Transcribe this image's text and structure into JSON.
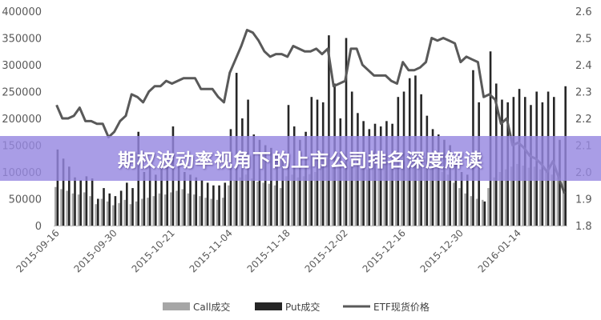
{
  "banner": {
    "text": "期权波动率视角下的上市公司排名深度解读"
  },
  "chart_data": {
    "type": "bar+line",
    "title": "",
    "categories": [
      "2015-09-16",
      "2015-09-17",
      "2015-09-18",
      "2015-09-21",
      "2015-09-22",
      "2015-09-23",
      "2015-09-24",
      "2015-09-25",
      "2015-09-28",
      "2015-09-29",
      "2015-09-30",
      "2015-10-08",
      "2015-10-09",
      "2015-10-12",
      "2015-10-13",
      "2015-10-14",
      "2015-10-15",
      "2015-10-16",
      "2015-10-19",
      "2015-10-20",
      "2015-10-21",
      "2015-10-22",
      "2015-10-23",
      "2015-10-26",
      "2015-10-27",
      "2015-10-28",
      "2015-10-29",
      "2015-10-30",
      "2015-11-02",
      "2015-11-03",
      "2015-11-04",
      "2015-11-05",
      "2015-11-06",
      "2015-11-09",
      "2015-11-10",
      "2015-11-11",
      "2015-11-12",
      "2015-11-13",
      "2015-11-16",
      "2015-11-17",
      "2015-11-18",
      "2015-11-19",
      "2015-11-20",
      "2015-11-23",
      "2015-11-24",
      "2015-11-25",
      "2015-11-26",
      "2015-11-27",
      "2015-11-30",
      "2015-12-01",
      "2015-12-02",
      "2015-12-03",
      "2015-12-04",
      "2015-12-07",
      "2015-12-08",
      "2015-12-09",
      "2015-12-10",
      "2015-12-11",
      "2015-12-14",
      "2015-12-15",
      "2015-12-16",
      "2015-12-17",
      "2015-12-18",
      "2015-12-21",
      "2015-12-22",
      "2015-12-23",
      "2015-12-24",
      "2015-12-25",
      "2015-12-28",
      "2015-12-29",
      "2015-12-30",
      "2015-12-31",
      "2016-01-04",
      "2016-01-05",
      "2016-01-06",
      "2016-01-07",
      "2016-01-08",
      "2016-01-11",
      "2016-01-12",
      "2016-01-13",
      "2016-01-14",
      "2016-01-15",
      "2016-01-18",
      "2016-01-19",
      "2016-01-20",
      "2016-01-21",
      "2016-01-22",
      "2016-01-25",
      "2016-01-26"
    ],
    "x_tick_labels": [
      "2015-09-16",
      "2015-09-30",
      "2015-10-21",
      "2015-11-04",
      "2015-11-18",
      "2015-12-02",
      "2015-12-16",
      "2015-12-30",
      "2016-01-14"
    ],
    "series": [
      {
        "name": "Call成交",
        "type": "bar",
        "axis": "left",
        "color": "#a6a6a6",
        "values": [
          72000,
          68000,
          65000,
          60000,
          58000,
          62000,
          55000,
          40000,
          50000,
          45000,
          38000,
          42000,
          48000,
          40000,
          45000,
          50000,
          52000,
          55000,
          60000,
          58000,
          62000,
          65000,
          68000,
          60000,
          58000,
          55000,
          52000,
          50000,
          48000,
          52000,
          75000,
          85000,
          90000,
          95000,
          88000,
          82000,
          80000,
          78000,
          75000,
          70000,
          92000,
          95000,
          90000,
          92000,
          96000,
          100000,
          110000,
          112000,
          115000,
          110000,
          118000,
          120000,
          115000,
          110000,
          105000,
          108000,
          112000,
          115000,
          120000,
          118000,
          125000,
          130000,
          132000,
          128000,
          126000,
          118000,
          110000,
          100000,
          95000,
          80000,
          70000,
          60000,
          55000,
          50000,
          48000,
          70000,
          90000,
          100000,
          105000,
          110000,
          115000,
          112000,
          108000,
          110000,
          105000,
          100000,
          95000,
          90000,
          85000
        ]
      },
      {
        "name": "Put成交",
        "type": "bar",
        "axis": "left",
        "color": "#262626",
        "values": [
          142000,
          125000,
          110000,
          90000,
          85000,
          92000,
          88000,
          50000,
          70000,
          60000,
          55000,
          65000,
          80000,
          70000,
          175000,
          100000,
          110000,
          95000,
          120000,
          115000,
          185000,
          110000,
          100000,
          95000,
          90000,
          85000,
          80000,
          75000,
          75000,
          80000,
          180000,
          285000,
          200000,
          235000,
          170000,
          160000,
          150000,
          145000,
          140000,
          125000,
          225000,
          185000,
          160000,
          175000,
          240000,
          235000,
          230000,
          355000,
          265000,
          200000,
          350000,
          250000,
          210000,
          195000,
          180000,
          190000,
          185000,
          195000,
          190000,
          240000,
          250000,
          275000,
          280000,
          245000,
          205000,
          180000,
          170000,
          160000,
          150000,
          115000,
          100000,
          95000,
          290000,
          230000,
          45000,
          325000,
          265000,
          235000,
          230000,
          240000,
          255000,
          240000,
          225000,
          250000,
          230000,
          250000,
          240000,
          160000,
          260000
        ]
      },
      {
        "name": "ETF现货价格",
        "type": "line",
        "axis": "right",
        "color": "#595959",
        "values": [
          2.25,
          2.2,
          2.2,
          2.21,
          2.24,
          2.19,
          2.19,
          2.18,
          2.18,
          2.13,
          2.15,
          2.19,
          2.21,
          2.29,
          2.28,
          2.26,
          2.3,
          2.32,
          2.32,
          2.34,
          2.33,
          2.34,
          2.35,
          2.35,
          2.35,
          2.31,
          2.31,
          2.31,
          2.28,
          2.26,
          2.37,
          2.42,
          2.47,
          2.53,
          2.52,
          2.49,
          2.45,
          2.43,
          2.44,
          2.44,
          2.43,
          2.47,
          2.46,
          2.45,
          2.45,
          2.46,
          2.44,
          2.46,
          2.32,
          2.33,
          2.34,
          2.46,
          2.46,
          2.4,
          2.38,
          2.36,
          2.36,
          2.36,
          2.34,
          2.33,
          2.41,
          2.38,
          2.38,
          2.39,
          2.41,
          2.5,
          2.49,
          2.5,
          2.49,
          2.48,
          2.41,
          2.43,
          2.42,
          2.41,
          2.28,
          2.29,
          2.27,
          2.18,
          2.2,
          2.1,
          2.11,
          2.09,
          2.06,
          2.05,
          2.03,
          2.0,
          2.04,
          1.98,
          1.92
        ]
      }
    ],
    "y_left": {
      "min": 0,
      "max": 400000,
      "ticks": [
        "0",
        "50000",
        "100000",
        "150000",
        "200000",
        "250000",
        "300000",
        "350000",
        "400000"
      ]
    },
    "y_right": {
      "min": 1.8,
      "max": 2.6,
      "ticks": [
        "1.8",
        "1.9",
        "2.0",
        "2.1",
        "2.2",
        "2.3",
        "2.4",
        "2.5",
        "2.6"
      ]
    },
    "grid": false,
    "legend": {
      "position": "bottom",
      "items": [
        "Call成交",
        "Put成交",
        "ETF现货价格"
      ]
    }
  }
}
